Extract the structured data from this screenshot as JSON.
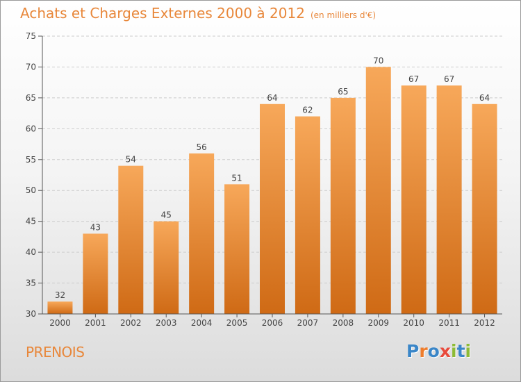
{
  "page": {
    "title": "Achats et Charges Externes 2000 à 2012",
    "unit_note": "(en milliers d'€)",
    "town": "PRENOIS",
    "logo": {
      "letters": [
        "P",
        "r",
        "o",
        "x",
        "i",
        "t",
        "i"
      ],
      "colors": [
        "#3a86c8",
        "#ee7d2c",
        "#3a86c8",
        "#e84a3c",
        "#8dbb35",
        "#3a86c8",
        "#8dbb35"
      ]
    },
    "colors": {
      "bar_top": "#f7a85a",
      "bar_bottom": "#cf6a15",
      "accent_text": "#e8873a",
      "grid": "#cccccc",
      "axis": "#555555"
    }
  },
  "chart_data": {
    "type": "bar",
    "title": "Achats et Charges Externes 2000 à 2012",
    "subtitle": "(en milliers d'€)",
    "xlabel": "",
    "ylabel": "",
    "categories": [
      "2000",
      "2001",
      "2002",
      "2003",
      "2004",
      "2005",
      "2006",
      "2007",
      "2008",
      "2009",
      "2010",
      "2011",
      "2012"
    ],
    "values": [
      32,
      43,
      54,
      45,
      56,
      51,
      64,
      62,
      65,
      70,
      67,
      67,
      64
    ],
    "data_labels": [
      "32",
      "43",
      "54",
      "45",
      "56",
      "51",
      "64",
      "62",
      "65",
      "70",
      "67",
      "67",
      "64"
    ],
    "ylim": [
      30,
      75
    ],
    "yticks": [
      30,
      35,
      40,
      45,
      50,
      55,
      60,
      65,
      70,
      75
    ],
    "ytick_labels": [
      "30",
      "35",
      "40",
      "45",
      "50",
      "55",
      "60",
      "65",
      "70",
      "75"
    ],
    "grid": true,
    "legend": "none"
  }
}
